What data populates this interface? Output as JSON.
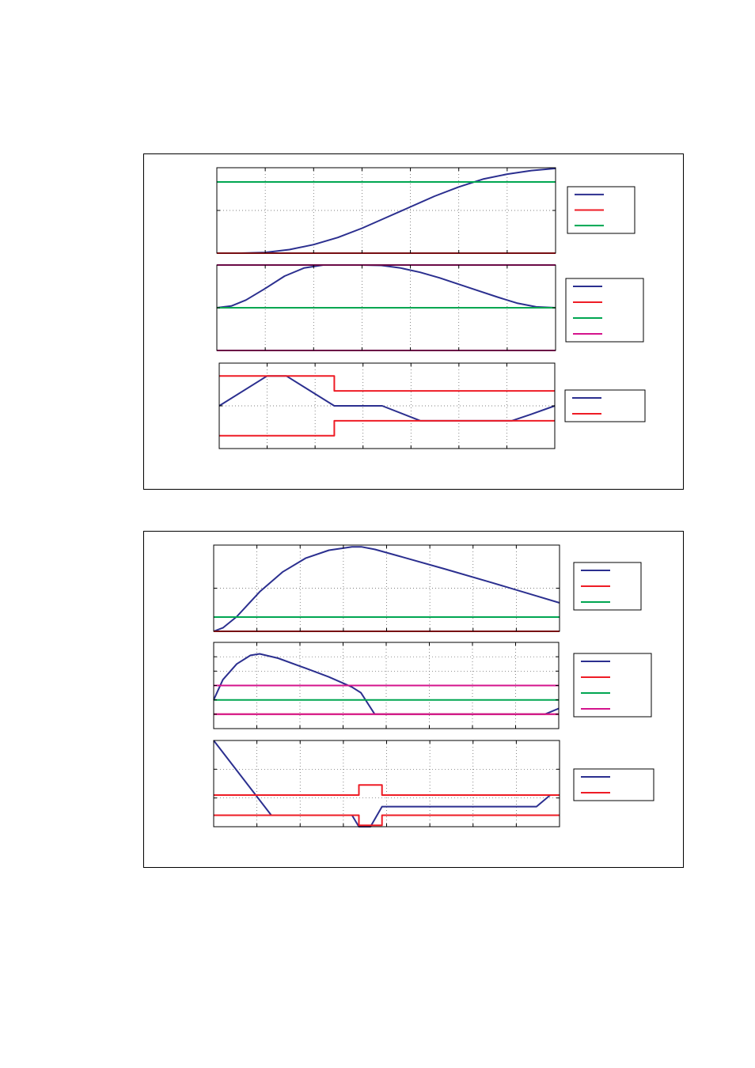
{
  "colors": {
    "blue": "#2b2f8f",
    "red": "#ee1c25",
    "green": "#00a651",
    "magenta": "#d4148c",
    "grid": "#555555"
  },
  "chart_data": [
    {
      "type": "line",
      "figure": 1,
      "ylim": [
        0,
        1.2
      ],
      "grid": true,
      "xticks": 7,
      "yticks": 2,
      "legend": {
        "placement": "right",
        "entries": [
          "",
          "",
          ""
        ],
        "colors": [
          "blue",
          "red",
          "green"
        ]
      },
      "series": [
        {
          "color": "blue",
          "x": [
            0,
            0.5,
            1,
            1.5,
            2,
            2.5,
            3,
            3.5,
            4,
            4.5,
            5,
            5.5,
            6,
            6.5,
            7
          ],
          "y": [
            0,
            0,
            0.01,
            0.05,
            0.12,
            0.22,
            0.35,
            0.5,
            0.65,
            0.8,
            0.93,
            1.04,
            1.11,
            1.16,
            1.19
          ]
        },
        {
          "color": "red",
          "x": [
            0,
            7
          ],
          "y": [
            0,
            0
          ]
        },
        {
          "color": "green",
          "x": [
            0,
            7
          ],
          "y": [
            1,
            1
          ]
        }
      ]
    },
    {
      "type": "line",
      "figure": 1,
      "ylim": [
        -1,
        1
      ],
      "grid": true,
      "xticks": 7,
      "yticks": 2,
      "legend": {
        "placement": "right",
        "entries": [
          "",
          "",
          "",
          ""
        ],
        "colors": [
          "blue",
          "red",
          "green",
          "magenta"
        ]
      },
      "series": [
        {
          "color": "blue",
          "x": [
            0,
            0.3,
            0.6,
            1,
            1.4,
            1.8,
            2.2,
            2.6,
            3,
            3.4,
            3.8,
            4.2,
            4.6,
            5,
            5.4,
            5.8,
            6.2,
            6.6,
            7
          ],
          "y": [
            0,
            0.04,
            0.18,
            0.45,
            0.74,
            0.93,
            1,
            1,
            1,
            0.99,
            0.93,
            0.83,
            0.7,
            0.55,
            0.4,
            0.25,
            0.11,
            0.02,
            0
          ]
        },
        {
          "color": "red",
          "x": [
            0,
            7
          ],
          "y": [
            0,
            0
          ]
        },
        {
          "color": "green",
          "x": [
            0,
            7
          ],
          "y": [
            0,
            0
          ]
        },
        {
          "color": "magenta",
          "x": [
            0,
            7
          ],
          "y": [
            1,
            1
          ]
        },
        {
          "color": "magenta",
          "x": [
            0,
            7
          ],
          "y": [
            -1,
            -1
          ]
        }
      ]
    },
    {
      "type": "line",
      "figure": 1,
      "ylim": [
        -1,
        1
      ],
      "grid": true,
      "xticks": 7,
      "yticks": 2,
      "legend": {
        "placement": "right",
        "entries": [
          "",
          ""
        ],
        "colors": [
          "blue",
          "red"
        ]
      },
      "series": [
        {
          "color": "blue",
          "x": [
            0,
            1,
            1.4,
            2.4,
            3.4,
            4.2,
            6.1,
            6.5,
            7
          ],
          "y": [
            0,
            0.7,
            0.7,
            0,
            0,
            -0.35,
            -0.35,
            -0.2,
            0
          ]
        },
        {
          "color": "red",
          "x": [
            0,
            2.4,
            2.4,
            7
          ],
          "y": [
            0.7,
            0.7,
            0.35,
            0.35
          ]
        },
        {
          "color": "red",
          "x": [
            0,
            2.2,
            2.2,
            2.4,
            2.4,
            7
          ],
          "y": [
            -0.7,
            -0.7,
            -0.7,
            -0.7,
            -0.35,
            -0.35
          ]
        }
      ]
    },
    {
      "type": "line",
      "figure": 2,
      "ylim": [
        0,
        2
      ],
      "grid": true,
      "xticks": 8,
      "yticks": 2,
      "legend": {
        "placement": "right",
        "entries": [
          "",
          "",
          ""
        ],
        "colors": [
          "blue",
          "red",
          "green"
        ]
      },
      "series": [
        {
          "color": "blue",
          "x": [
            0,
            0.2,
            0.5,
            1,
            1.5,
            2,
            2.5,
            3,
            3.2,
            3.5,
            4,
            5,
            6,
            7,
            7.5
          ],
          "y": [
            0,
            0.08,
            0.34,
            0.92,
            1.38,
            1.7,
            1.88,
            1.96,
            1.96,
            1.9,
            1.75,
            1.45,
            1.14,
            0.82,
            0.66
          ]
        },
        {
          "color": "red",
          "x": [
            0,
            7.5
          ],
          "y": [
            0,
            0
          ]
        },
        {
          "color": "green",
          "x": [
            0,
            7.5
          ],
          "y": [
            0.33,
            0.33
          ]
        }
      ]
    },
    {
      "type": "line",
      "figure": 2,
      "ylim": [
        -1,
        5
      ],
      "grid": true,
      "xticks": 8,
      "yticks": 6,
      "legend": {
        "placement": "right",
        "entries": [
          "",
          "",
          "",
          ""
        ],
        "colors": [
          "blue",
          "red",
          "green",
          "magenta"
        ]
      },
      "series": [
        {
          "color": "blue",
          "x": [
            0,
            0.2,
            0.5,
            0.8,
            1,
            1.4,
            2,
            2.5,
            3,
            3.2,
            3.5,
            4,
            5,
            6,
            7,
            7.2,
            7.5
          ],
          "y": [
            1,
            2.4,
            3.5,
            4.1,
            4.2,
            3.9,
            3.2,
            2.6,
            1.9,
            1.5,
            0,
            0,
            0,
            0,
            0,
            0,
            0.4
          ]
        },
        {
          "color": "red",
          "x": [
            0,
            7.5
          ],
          "y": [
            0,
            0
          ]
        },
        {
          "color": "green",
          "x": [
            0,
            7.5
          ],
          "y": [
            1,
            1
          ]
        },
        {
          "color": "magenta",
          "x": [
            0,
            7.5
          ],
          "y": [
            2,
            2
          ]
        },
        {
          "color": "magenta",
          "x": [
            0,
            7.5
          ],
          "y": [
            0,
            0
          ]
        }
      ]
    },
    {
      "type": "line",
      "figure": 2,
      "ylim": [
        -1.5,
        1.5
      ],
      "grid": true,
      "xticks": 8,
      "yticks": 3,
      "legend": {
        "placement": "right",
        "entries": [
          "",
          ""
        ],
        "colors": [
          "blue",
          "red"
        ]
      },
      "series": [
        {
          "color": "blue",
          "x": [
            0,
            1.25,
            3,
            3.15,
            3.4,
            3.65,
            7,
            7.3,
            7.5
          ],
          "y": [
            1.5,
            -1.1,
            -1.1,
            -1.5,
            -1.5,
            -0.8,
            -0.8,
            -0.4,
            -0.4
          ]
        },
        {
          "color": "red",
          "x": [
            0,
            3.15,
            3.15,
            3.65,
            3.65,
            7.5
          ],
          "y": [
            -0.4,
            -0.4,
            -0.05,
            -0.05,
            -0.4,
            -0.4
          ]
        },
        {
          "color": "red",
          "x": [
            0,
            3.15,
            3.15,
            3.65,
            3.65,
            7.5
          ],
          "y": [
            -1.1,
            -1.1,
            -1.45,
            -1.45,
            -1.1,
            -1.1
          ]
        }
      ]
    }
  ]
}
